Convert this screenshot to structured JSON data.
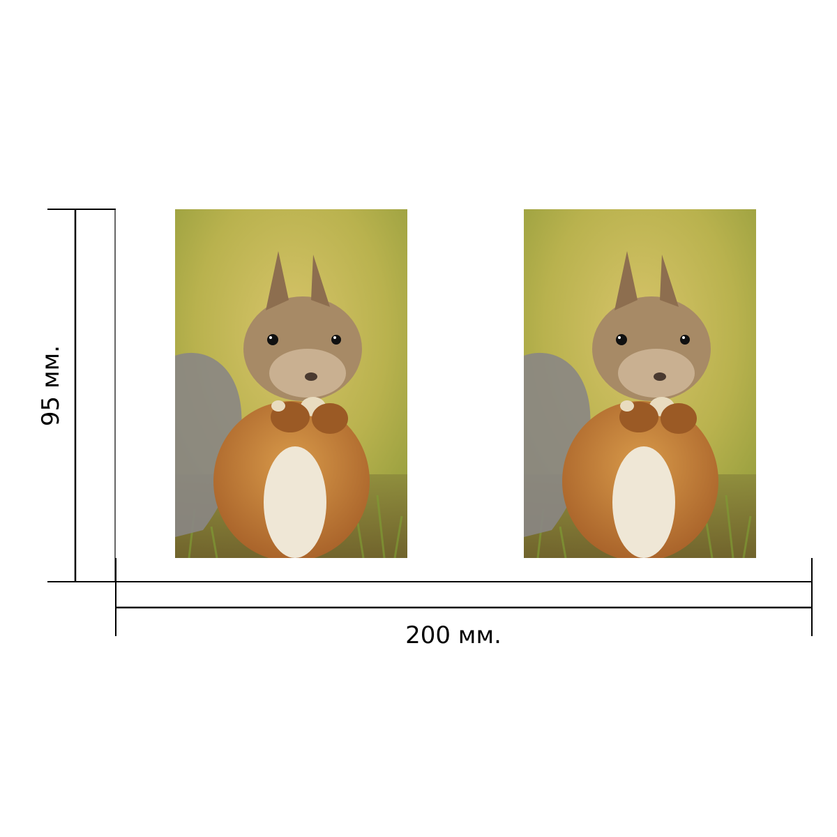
{
  "dimensions": {
    "width_label": "200 мм.",
    "height_label": "95 мм."
  },
  "photos": [
    {
      "subject": "squirrel-eating-nut"
    },
    {
      "subject": "squirrel-eating-nut"
    }
  ],
  "colors": {
    "line": "#000000",
    "background": "#ffffff"
  }
}
